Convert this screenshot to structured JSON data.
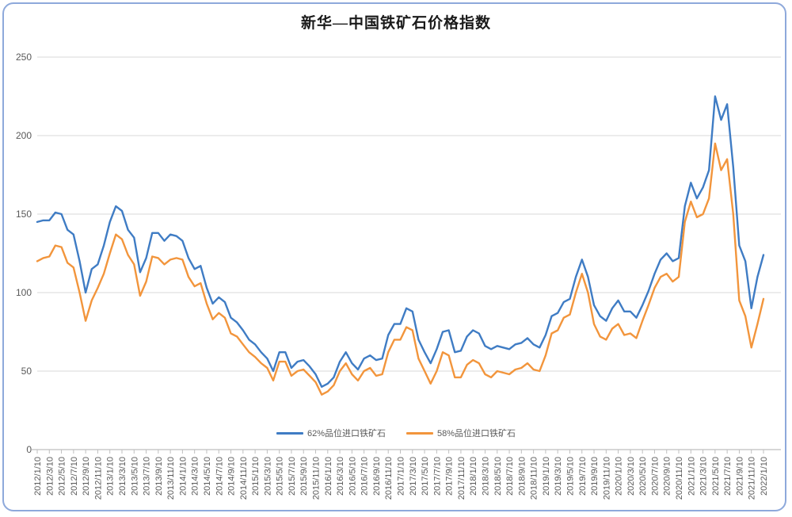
{
  "frame": {
    "border_color": "#8EA9DB",
    "background": "#FFFFFF"
  },
  "chart_data": {
    "type": "line",
    "title": "新华—中国铁矿石价格指数",
    "xlabel": "",
    "ylabel": "",
    "ylim": [
      0,
      250
    ],
    "y_ticks": [
      0,
      50,
      100,
      150,
      200,
      250
    ],
    "grid": "horizontal-light-gray",
    "legend_position": "bottom-center",
    "x_tick_labels": [
      "2012/1/10",
      "2012/3/10",
      "2012/5/10",
      "2012/7/10",
      "2012/9/10",
      "2012/11/10",
      "2013/1/10",
      "2013/3/10",
      "2013/5/10",
      "2013/7/10",
      "2013/9/10",
      "2013/11/10",
      "2014/1/10",
      "2014/3/10",
      "2014/5/10",
      "2014/7/10",
      "2014/9/10",
      "2014/11/10",
      "2015/1/10",
      "2015/3/10",
      "2015/5/10",
      "2015/7/10",
      "2015/9/10",
      "2015/11/10",
      "2016/1/10",
      "2016/3/10",
      "2016/5/10",
      "2016/7/10",
      "2016/9/10",
      "2016/11/10",
      "2017/1/10",
      "2017/3/10",
      "2017/5/10",
      "2017/7/10",
      "2017/9/10",
      "2017/11/10",
      "2018/1/10",
      "2018/3/10",
      "2018/5/10",
      "2018/7/10",
      "2018/9/10",
      "2018/11/10",
      "2019/1/10",
      "2019/3/10",
      "2019/5/10",
      "2019/7/10",
      "2019/9/10",
      "2019/11/10",
      "2020/1/10",
      "2020/3/10",
      "2020/5/10",
      "2020/7/10",
      "2020/9/10",
      "2020/11/10",
      "2021/1/10",
      "2021/3/10",
      "2021/5/10",
      "2021/7/10",
      "2021/9/10",
      "2021/11/10",
      "2022/1/10"
    ],
    "points_per_tick": 2,
    "x_start": "2012/1/10",
    "x_step_months": 1,
    "series": [
      {
        "name": "62%品位进口铁矿石",
        "color": "#3F7CC4",
        "values": [
          145,
          146,
          146,
          151,
          150,
          140,
          137,
          120,
          100,
          115,
          118,
          130,
          145,
          155,
          152,
          140,
          135,
          113,
          122,
          138,
          138,
          133,
          137,
          136,
          133,
          122,
          115,
          117,
          103,
          93,
          97,
          94,
          84,
          81,
          76,
          70,
          67,
          62,
          58,
          50,
          62,
          62,
          52,
          56,
          57,
          53,
          48,
          40,
          42,
          46,
          56,
          62,
          55,
          51,
          58,
          60,
          57,
          58,
          73,
          80,
          80,
          90,
          88,
          70,
          62,
          55,
          64,
          75,
          76,
          62,
          63,
          72,
          76,
          74,
          66,
          64,
          66,
          65,
          64,
          67,
          68,
          71,
          67,
          65,
          73,
          85,
          87,
          94,
          96,
          110,
          121,
          110,
          92,
          85,
          82,
          90,
          95,
          88,
          88,
          84,
          92,
          101,
          112,
          121,
          125,
          120,
          122,
          155,
          170,
          160,
          167,
          178,
          225,
          210,
          220,
          180,
          130,
          120,
          90,
          110,
          124
        ]
      },
      {
        "name": "58%品位进口铁矿石",
        "color": "#F2953C",
        "values": [
          120,
          122,
          123,
          130,
          129,
          119,
          116,
          100,
          82,
          95,
          103,
          112,
          125,
          137,
          134,
          124,
          118,
          98,
          107,
          123,
          122,
          118,
          121,
          122,
          121,
          110,
          104,
          106,
          93,
          83,
          87,
          84,
          74,
          72,
          67,
          62,
          59,
          55,
          52,
          44,
          56,
          56,
          47,
          50,
          51,
          47,
          43,
          35,
          37,
          41,
          50,
          55,
          48,
          44,
          50,
          52,
          47,
          48,
          62,
          70,
          70,
          78,
          76,
          58,
          50,
          42,
          50,
          62,
          60,
          46,
          46,
          54,
          57,
          55,
          48,
          46,
          50,
          49,
          48,
          51,
          52,
          55,
          51,
          50,
          60,
          74,
          76,
          84,
          86,
          100,
          112,
          100,
          80,
          72,
          70,
          77,
          80,
          73,
          74,
          71,
          82,
          92,
          103,
          110,
          112,
          107,
          110,
          145,
          158,
          148,
          150,
          160,
          195,
          178,
          185,
          150,
          95,
          85,
          65,
          80,
          96
        ]
      }
    ],
    "style": {
      "grid_color": "#D9D9D9",
      "axis_color": "#BFBFBF",
      "tick_label_color": "#595959",
      "line_width": 2.4
    }
  }
}
